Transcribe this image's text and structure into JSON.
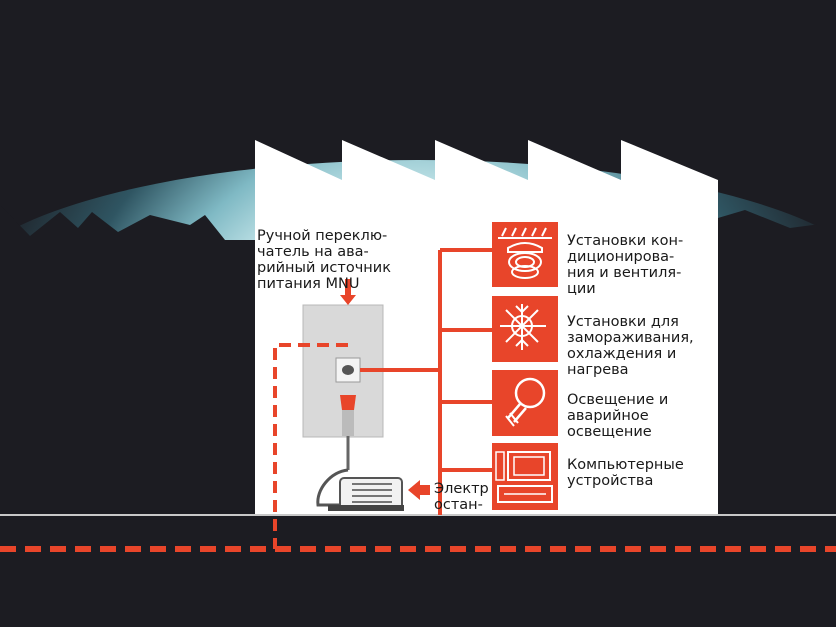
{
  "colors": {
    "background": "#1c1c22",
    "building": "#ffffff",
    "accent": "#e8452a",
    "glow": "#bfe6ea",
    "cabinet": "#d9d9d9",
    "ground_line": "#c8c8c8"
  },
  "labels": {
    "switch": "Ручной переклю-\nчатель на ава-\nрийный источник\nпитания MNU",
    "generator": "Электр\nостан-",
    "air_conditioning": "Установки кон-\nдиционирова-\nния и вентиля-\nции",
    "freezing": "Установки для\nзамораживания,\nохлаждения и\nнагрева",
    "lighting": "Освещение и\nаварийное\nосвещение",
    "computers": "Компьютерные\nустройства"
  },
  "icons": {
    "air_conditioning": "ventilation-icon",
    "freezing": "snowflake-sun-icon",
    "lighting": "light-bulb-icon",
    "computers": "computer-icon"
  }
}
